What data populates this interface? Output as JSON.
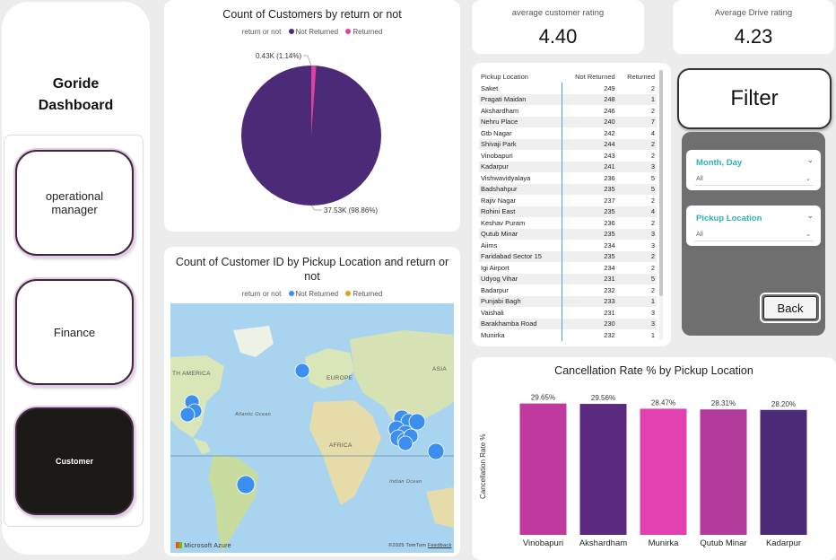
{
  "sidebar": {
    "title_line1": "Goride",
    "title_line2": "Dashboard",
    "nav": [
      {
        "label": "operational manager"
      },
      {
        "label": "Finance"
      },
      {
        "label": "Customer"
      }
    ]
  },
  "pie": {
    "title": "Count of Customers by return or not",
    "legend_title": "return or not",
    "legend": [
      {
        "label": "Not Returned",
        "color": "#4b2a78"
      },
      {
        "label": "Returned",
        "color": "#e040a0"
      }
    ],
    "label_returned": "0.43K (1.14%)",
    "label_not_returned": "37.53K (98.86%)",
    "returned_fraction": 0.0114
  },
  "map": {
    "title": "Count of Customer ID by Pickup Location and return or not",
    "legend_title": "return or not",
    "legend": [
      {
        "label": "Not Returned",
        "color": "#3b8ff0"
      },
      {
        "label": "Returned",
        "color": "#e0a020"
      }
    ],
    "labels": {
      "north_america": "TH AMERICA",
      "europe": "EUROPE",
      "asia": "ASIA",
      "atlantic": "Atlantic Ocean",
      "africa": "AFRICA",
      "indian": "Indian Ocean"
    },
    "attribution": "Microsoft Azure",
    "copyright": "©2025 TomTom",
    "feedback": "Feedback"
  },
  "kpis": {
    "customer_rating": {
      "label": "average customer rating",
      "value": "4.40"
    },
    "drive_rating": {
      "label": "Average Drive rating",
      "value": "4.23"
    }
  },
  "table": {
    "headers": [
      "Pickup Location",
      "Not Returned",
      "Returned"
    ],
    "rows": [
      [
        "Saket",
        "249",
        "2"
      ],
      [
        "Pragati Maidan",
        "248",
        "1"
      ],
      [
        "Akshardham",
        "246",
        "2"
      ],
      [
        "Nehru Place",
        "240",
        "7"
      ],
      [
        "Gtb Nagar",
        "242",
        "4"
      ],
      [
        "Shivaji Park",
        "244",
        "2"
      ],
      [
        "Vinobapuri",
        "243",
        "2"
      ],
      [
        "Kadarpur",
        "241",
        "3"
      ],
      [
        "Vishwavidyalaya",
        "236",
        "5"
      ],
      [
        "Badshahpur",
        "235",
        "5"
      ],
      [
        "Rajiv Nagar",
        "237",
        "2"
      ],
      [
        "Rohini East",
        "235",
        "4"
      ],
      [
        "Keshav Puram",
        "236",
        "2"
      ],
      [
        "Qutub Minar",
        "235",
        "3"
      ],
      [
        "Aiims",
        "234",
        "3"
      ],
      [
        "Faridabad Sector 15",
        "235",
        "2"
      ],
      [
        "Igi Airport",
        "234",
        "2"
      ],
      [
        "Udyog Vihar",
        "231",
        "5"
      ],
      [
        "Badarpur",
        "232",
        "2"
      ],
      [
        "Punjabi Bagh",
        "233",
        "1"
      ],
      [
        "Vaishali",
        "231",
        "3"
      ],
      [
        "Barakhamba Road",
        "230",
        "3"
      ],
      [
        "Munirka",
        "232",
        "1"
      ]
    ]
  },
  "filter": {
    "button_label": "Filter",
    "slicers": [
      {
        "title": "Month, Day",
        "value": "All"
      },
      {
        "title": "Pickup Location",
        "value": "All"
      }
    ],
    "back_label": "Back"
  },
  "chart_data": {
    "type": "bar",
    "title": "Cancellation Rate % by Pickup Location",
    "ylabel": "Cancellation Rate %",
    "xlabel": "",
    "categories": [
      "Vinobapuri",
      "Akshardham",
      "Munirka",
      "Qutub Minar",
      "Kadarpur"
    ],
    "values": [
      29.65,
      29.56,
      28.47,
      28.31,
      28.2
    ],
    "data_labels": [
      "29.65%",
      "29.56%",
      "28.47%",
      "28.31%",
      "28.20%"
    ],
    "colors": [
      "#c0399f",
      "#5b2a7f",
      "#e040b0",
      "#b23a9a",
      "#4b2a78"
    ],
    "ylim": [
      0,
      32
    ]
  }
}
